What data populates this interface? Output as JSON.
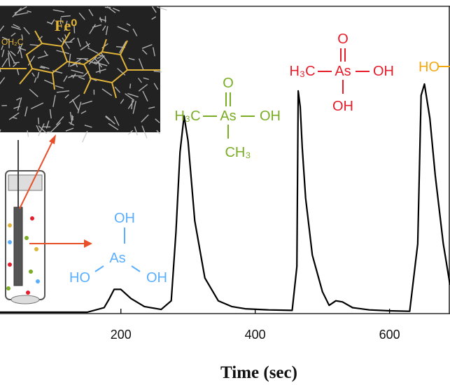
{
  "chart_data": {
    "type": "line",
    "title": "",
    "xlabel": "Time (sec)",
    "ylabel": "",
    "xlim": [
      20,
      690
    ],
    "ylim": [
      0,
      1.0
    ],
    "x_ticks": [
      200,
      400,
      600
    ],
    "grid": false,
    "series": [
      {
        "x": [
          20,
          100,
          150,
          175,
          183,
          190,
          200,
          215,
          235,
          260,
          275,
          282,
          288,
          294,
          300,
          310,
          325,
          345,
          365,
          385,
          420,
          455,
          462,
          464,
          467,
          470,
          475,
          485,
          500,
          510,
          520,
          530,
          545,
          570,
          600,
          630,
          642,
          647,
          652,
          660,
          668,
          680,
          690
        ],
        "y": [
          0.0,
          0.0,
          0.0,
          0.02,
          0.06,
          0.1,
          0.1,
          0.06,
          0.025,
          0.012,
          0.05,
          0.35,
          0.7,
          0.86,
          0.75,
          0.4,
          0.15,
          0.05,
          0.025,
          0.015,
          0.01,
          0.008,
          0.2,
          0.97,
          0.9,
          0.72,
          0.5,
          0.25,
          0.09,
          0.03,
          0.05,
          0.045,
          0.02,
          0.01,
          0.006,
          0.004,
          0.3,
          0.95,
          1.0,
          0.85,
          0.6,
          0.3,
          0.12
        ]
      }
    ],
    "annotations": {
      "as3": {
        "top": "OH",
        "center": "As",
        "left": "HO",
        "right": "OH",
        "color": "#5aaeff"
      },
      "dma": {
        "left": "H₃C",
        "center": "As",
        "right": "OH",
        "top": "O",
        "bottom": "CH₃",
        "color": "#7aad25"
      },
      "mma": {
        "left": "H₃C",
        "center": "As",
        "right": "OH",
        "top": "O",
        "bottom": "OH",
        "color": "#e51c2a"
      },
      "as5": {
        "left": "HO",
        "color": "#f2a80f"
      }
    },
    "inset": {
      "label": "Fe⁰",
      "left_label": "OH₂C"
    }
  }
}
